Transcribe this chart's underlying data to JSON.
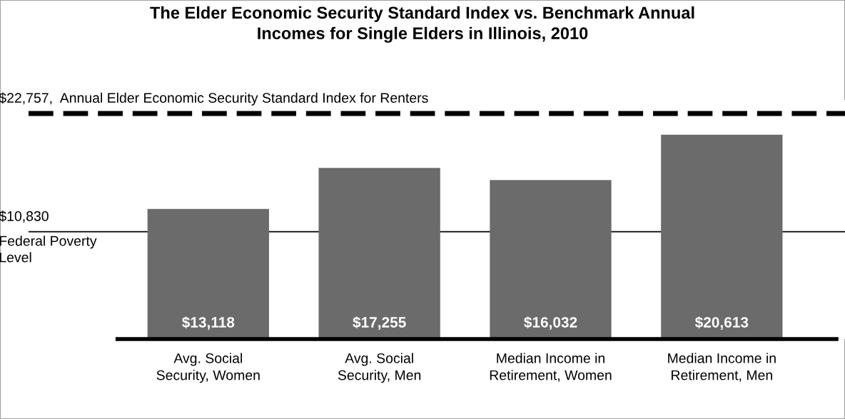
{
  "chart_data": {
    "type": "bar",
    "title": "The Elder Economic Security Standard Index vs. Benchmark Annual\nIncomes for Single Elders in Illinois, 2010",
    "categories": [
      "Avg. Social\nSecurity, Women",
      "Avg. Social\nSecurity, Men",
      "Median Income in\nRetirement, Women",
      "Median Income in\nRetirement, Men"
    ],
    "values": [
      13118,
      17255,
      16032,
      20613
    ],
    "value_labels": [
      "$13,118",
      "$17,255",
      "$16,032",
      "$20,613"
    ],
    "color": "#6b6b6b",
    "tick_labels": "x",
    "ref_lines": [
      {
        "axis": "y",
        "value": 22757,
        "label": "$22,757,  Annual Elder Economic Security Standard Index for Renters",
        "color": "#000000",
        "line_style": "dashed"
      },
      {
        "axis": "y",
        "value": 10830,
        "label": "$10,830\nFederal Poverty\nLevel",
        "color": "#000000",
        "line_style": "solid"
      }
    ]
  }
}
